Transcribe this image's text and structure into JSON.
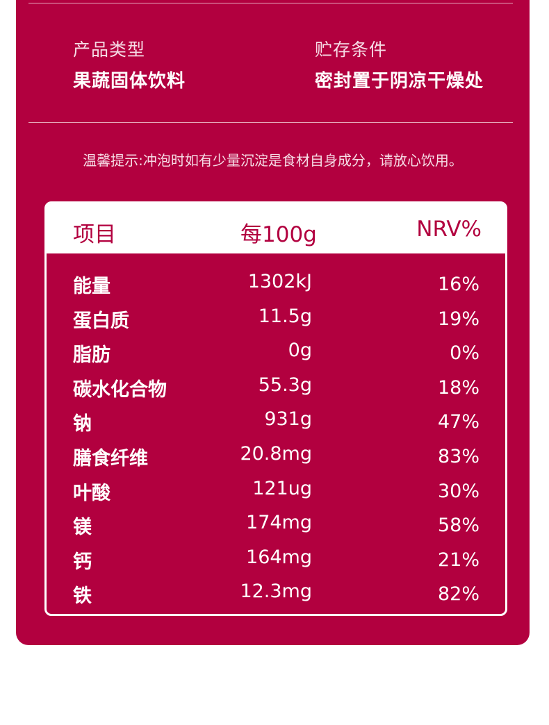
{
  "info": {
    "type_label": "产品类型",
    "type_value": "果蔬固体饮料",
    "storage_label": "贮存条件",
    "storage_value": "密封置于阴凉干燥处"
  },
  "tip": "温馨提示:冲泡时如有少量沉淀是食材自身成分，请放心饮用。",
  "table": {
    "headers": {
      "name": "项目",
      "per100g": "每100g",
      "nrv": "NRV%"
    },
    "rows": [
      {
        "name": "能量",
        "per100g": "1302kJ",
        "nrv": "16%"
      },
      {
        "name": "蛋白质",
        "per100g": "11.5g",
        "nrv": "19%"
      },
      {
        "name": "脂肪",
        "per100g": "0g",
        "nrv": "0%"
      },
      {
        "name": "碳水化合物",
        "per100g": "55.3g",
        "nrv": "18%"
      },
      {
        "name": "钠",
        "per100g": "931g",
        "nrv": "47%"
      },
      {
        "name": "膳食纤维",
        "per100g": "20.8mg",
        "nrv": "83%"
      },
      {
        "name": "叶酸",
        "per100g": "121ug",
        "nrv": "30%"
      },
      {
        "name": "镁",
        "per100g": "174mg",
        "nrv": "58%"
      },
      {
        "name": "钙",
        "per100g": "164mg",
        "nrv": "21%"
      },
      {
        "name": "铁",
        "per100g": "12.3mg",
        "nrv": "82%"
      }
    ]
  },
  "colors": {
    "brand": "#b2003f",
    "text": "#ffffff"
  }
}
